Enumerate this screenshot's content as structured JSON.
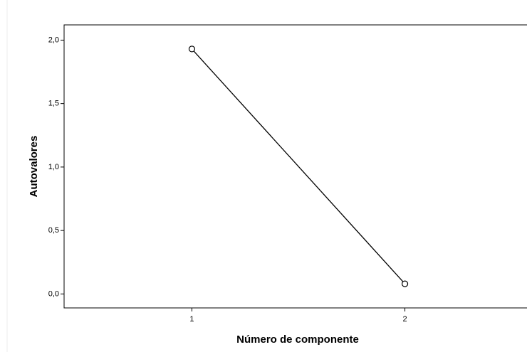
{
  "chart_data": {
    "type": "line",
    "x_label": "Número de componente",
    "y_label": "Autovalores",
    "x": [
      1,
      2
    ],
    "series": [
      {
        "color": "#000000",
        "values": [
          1.93,
          0.08
        ]
      }
    ],
    "xlim": [
      0.4,
      2.6
    ],
    "xticks": [
      1,
      2
    ],
    "ylim": [
      -0.11,
      2.12
    ],
    "yticks": [
      {
        "value": 0,
        "label": "0,0"
      },
      {
        "value": 0.5,
        "label": "0,5"
      },
      {
        "value": 1,
        "label": "1,0"
      },
      {
        "value": 1.5,
        "label": "1,5"
      },
      {
        "value": 2,
        "label": "2,0"
      }
    ],
    "grid": false,
    "markers": true
  }
}
